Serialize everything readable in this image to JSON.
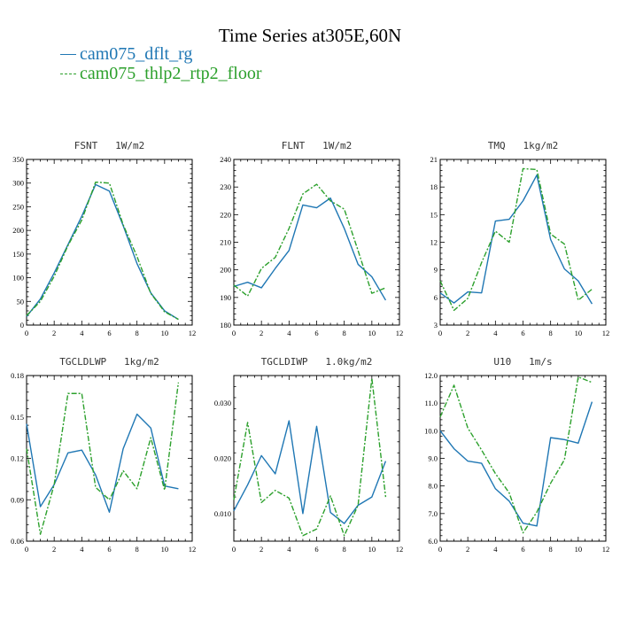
{
  "figure": {
    "title": "Time Series at305E,60N",
    "legend": [
      {
        "label": "cam075_dflt_rg",
        "color": "#1f77b4",
        "style": "solid"
      },
      {
        "label": "cam075_thlp2_rtp2_floor",
        "color": "#2ca02c",
        "style": "dashed"
      }
    ]
  },
  "chart_data": [
    {
      "type": "line",
      "title": "FSNT   1W/m2",
      "x": [
        0,
        1,
        2,
        3,
        4,
        5,
        6,
        7,
        8,
        9,
        10,
        11
      ],
      "xlim": [
        0,
        12
      ],
      "xticks": [
        0,
        2,
        4,
        6,
        8,
        10,
        12
      ],
      "xtick_labels": [
        "0",
        "2",
        "4",
        "6",
        "8",
        "10",
        "12"
      ],
      "ylim": [
        0,
        350
      ],
      "yticks": [
        0,
        50,
        100,
        150,
        200,
        250,
        300,
        350
      ],
      "ytick_labels": [
        "0",
        "50",
        "100",
        "150",
        "200",
        "250",
        "300",
        "350"
      ],
      "series": [
        {
          "name": "cam075_dflt_rg",
          "values": [
            18,
            55,
            110,
            170,
            230,
            297,
            283,
            210,
            130,
            68,
            30,
            12
          ]
        },
        {
          "name": "cam075_thlp2_rtp2_floor",
          "values": [
            20,
            50,
            103,
            168,
            222,
            302,
            300,
            212,
            145,
            67,
            28,
            12
          ]
        }
      ]
    },
    {
      "type": "line",
      "title": "FLNT   1W/m2",
      "x": [
        0,
        1,
        2,
        3,
        4,
        5,
        6,
        7,
        8,
        9,
        10,
        11
      ],
      "xlim": [
        0,
        12
      ],
      "xticks": [
        0,
        2,
        4,
        6,
        8,
        10,
        12
      ],
      "xtick_labels": [
        "0",
        "2",
        "4",
        "6",
        "8",
        "10",
        "12"
      ],
      "ylim": [
        180,
        240
      ],
      "yticks": [
        180,
        190,
        200,
        210,
        220,
        230,
        240
      ],
      "ytick_labels": [
        "180",
        "190",
        "200",
        "210",
        "220",
        "230",
        "240"
      ],
      "series": [
        {
          "name": "cam075_dflt_rg",
          "values": [
            194,
            195.5,
            193.5,
            200.5,
            207,
            223.5,
            222.5,
            226,
            215,
            202,
            197.5,
            189
          ]
        },
        {
          "name": "cam075_thlp2_rtp2_floor",
          "values": [
            194.5,
            190.5,
            200.5,
            204.5,
            215,
            227.5,
            231,
            225,
            222,
            207,
            191.5,
            193.5
          ]
        }
      ]
    },
    {
      "type": "line",
      "title": "TMQ   1kg/m2",
      "x": [
        0,
        1,
        2,
        3,
        4,
        5,
        6,
        7,
        8,
        9,
        10,
        11
      ],
      "xlim": [
        0,
        12
      ],
      "xticks": [
        0,
        2,
        4,
        6,
        8,
        10,
        12
      ],
      "xtick_labels": [
        "0",
        "2",
        "4",
        "6",
        "8",
        "10",
        "12"
      ],
      "ylim": [
        3,
        21
      ],
      "yticks": [
        3,
        6,
        9,
        12,
        15,
        18,
        21
      ],
      "ytick_labels": [
        "3",
        "6",
        "9",
        "12",
        "15",
        "18",
        "21"
      ],
      "series": [
        {
          "name": "cam075_dflt_rg",
          "values": [
            6.5,
            5.4,
            6.6,
            6.5,
            14.3,
            14.5,
            16.5,
            19.3,
            12.3,
            9.1,
            7.8,
            5.3
          ]
        },
        {
          "name": "cam075_thlp2_rtp2_floor",
          "values": [
            7.8,
            4.6,
            5.9,
            9.8,
            13.2,
            12.0,
            20.0,
            19.9,
            12.9,
            11.8,
            5.7,
            6.9
          ]
        }
      ]
    },
    {
      "type": "line",
      "title": "TGCLDLWP   1kg/m2",
      "x": [
        0,
        1,
        2,
        3,
        4,
        5,
        6,
        7,
        8,
        9,
        10,
        11
      ],
      "xlim": [
        0,
        12
      ],
      "xticks": [
        0,
        2,
        4,
        6,
        8,
        10,
        12
      ],
      "xtick_labels": [
        "0",
        "2",
        "4",
        "6",
        "8",
        "10",
        "12"
      ],
      "ylim": [
        0.06,
        0.18
      ],
      "yticks": [
        0.06,
        0.09,
        0.12,
        0.15,
        0.18
      ],
      "ytick_labels": [
        "0.06",
        "0.09",
        "0.12",
        "0.15",
        "0.18"
      ],
      "series": [
        {
          "name": "cam075_dflt_rg",
          "values": [
            0.145,
            0.085,
            0.101,
            0.124,
            0.126,
            0.108,
            0.081,
            0.127,
            0.152,
            0.142,
            0.1,
            0.098
          ]
        },
        {
          "name": "cam075_thlp2_rtp2_floor",
          "values": [
            0.127,
            0.065,
            0.101,
            0.167,
            0.167,
            0.099,
            0.09,
            0.111,
            0.098,
            0.135,
            0.097,
            0.175
          ]
        }
      ]
    },
    {
      "type": "line",
      "title": "TGCLDIWP   1.0kg/m2",
      "x": [
        0,
        1,
        2,
        3,
        4,
        5,
        6,
        7,
        8,
        9,
        10,
        11
      ],
      "xlim": [
        0,
        12
      ],
      "xticks": [
        0,
        2,
        4,
        6,
        8,
        10,
        12
      ],
      "xtick_labels": [
        "0",
        "2",
        "4",
        "6",
        "8",
        "10",
        "12"
      ],
      "ylim": [
        0.005,
        0.035
      ],
      "yticks": [
        0.01,
        0.02,
        0.03
      ],
      "ytick_labels": [
        "0.010",
        "0.020",
        "0.030"
      ],
      "series": [
        {
          "name": "cam075_dflt_rg",
          "values": [
            0.0105,
            0.0152,
            0.0205,
            0.0172,
            0.0268,
            0.01,
            0.0258,
            0.0102,
            0.0082,
            0.0115,
            0.013,
            0.0195
          ]
        },
        {
          "name": "cam075_thlp2_rtp2_floor",
          "values": [
            0.0125,
            0.0265,
            0.012,
            0.0142,
            0.0128,
            0.006,
            0.0072,
            0.0132,
            0.006,
            0.0115,
            0.0345,
            0.013
          ]
        }
      ]
    },
    {
      "type": "line",
      "title": "U10   1m/s",
      "x": [
        0,
        1,
        2,
        3,
        4,
        5,
        6,
        7,
        8,
        9,
        10,
        11
      ],
      "xlim": [
        0,
        12
      ],
      "xticks": [
        0,
        2,
        4,
        6,
        8,
        10,
        12
      ],
      "xtick_labels": [
        "0",
        "2",
        "4",
        "6",
        "8",
        "10",
        "12"
      ],
      "ylim": [
        6.0,
        12.0
      ],
      "yticks": [
        6,
        7,
        8,
        9,
        10,
        11,
        12
      ],
      "ytick_labels": [
        "6.0",
        "7.0",
        "8.0",
        "9.0",
        "10.0",
        "11.0",
        "12.0"
      ],
      "series": [
        {
          "name": "cam075_dflt_rg",
          "values": [
            10.0,
            9.35,
            8.9,
            8.82,
            7.9,
            7.45,
            6.65,
            6.55,
            9.75,
            9.68,
            9.55,
            11.05
          ]
        },
        {
          "name": "cam075_thlp2_rtp2_floor",
          "values": [
            10.5,
            11.65,
            10.1,
            9.3,
            8.45,
            7.75,
            6.3,
            7.05,
            8.1,
            8.95,
            11.95,
            11.75
          ]
        }
      ]
    }
  ]
}
